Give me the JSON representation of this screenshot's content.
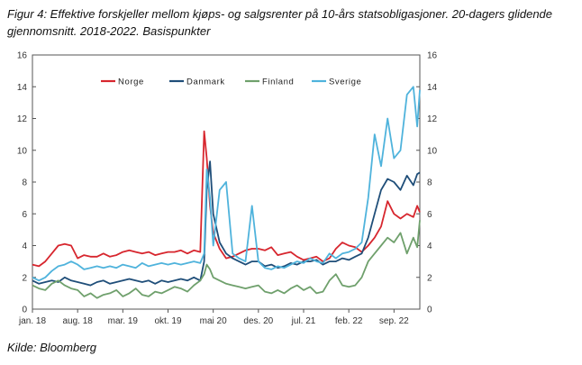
{
  "title": "Figur 4: Effektive forskjeller mellom kjøps- og salgsrenter på 10-års statsobligasjoner. 20-dagers glidende gjennomsnitt. 2018-2022. Basispunkter",
  "source": "Kilde: Bloomberg",
  "colors": {
    "Norge": "#d7262e",
    "Danmark": "#1f4e79",
    "Finland": "#6fa06c",
    "Sverige": "#4fb3dc"
  },
  "chart_data": {
    "type": "line",
    "title": "Figur 4: Effektive forskjeller mellom kjøps- og salgsrenter på 10-års statsobligasjoner. 20-dagers glidende gjennomsnitt. 2018-2022. Basispunkter",
    "xlabel": "",
    "ylabel": "",
    "ylim": [
      0,
      16
    ],
    "xlim": [
      0,
      60
    ],
    "yticks_left": [
      "0",
      "2",
      "4",
      "6",
      "8",
      "10",
      "12",
      "14",
      "16"
    ],
    "yticks_right": [
      "0",
      "2",
      "4",
      "6",
      "8",
      "10",
      "12",
      "14",
      "16"
    ],
    "xticks": [
      {
        "pos": 0,
        "label": "jan. 18"
      },
      {
        "pos": 7,
        "label": "aug. 18"
      },
      {
        "pos": 14,
        "label": "mar. 19"
      },
      {
        "pos": 21,
        "label": "okt. 19"
      },
      {
        "pos": 28,
        "label": "mai 20"
      },
      {
        "pos": 35,
        "label": "des. 20"
      },
      {
        "pos": 42,
        "label": "jul. 21"
      },
      {
        "pos": 49,
        "label": "feb. 22"
      },
      {
        "pos": 56,
        "label": "sep. 22"
      }
    ],
    "legend_position": "top",
    "series": [
      {
        "name": "Norge",
        "x": [
          0,
          1,
          2,
          3,
          4,
          5,
          6,
          7,
          8,
          9,
          10,
          11,
          12,
          13,
          14,
          15,
          16,
          17,
          18,
          19,
          20,
          21,
          22,
          23,
          24,
          25,
          26,
          26.6,
          27,
          27.5,
          28,
          29,
          30,
          31,
          32,
          33,
          34,
          35,
          36,
          37,
          38,
          39,
          40,
          41,
          42,
          43,
          44,
          45,
          46,
          47,
          48,
          49,
          50,
          51,
          52,
          53,
          54,
          55,
          56,
          57,
          58,
          59,
          59.6,
          60
        ],
        "values": [
          2.8,
          2.7,
          3.0,
          3.5,
          4.0,
          4.1,
          4.0,
          3.2,
          3.4,
          3.3,
          3.3,
          3.5,
          3.3,
          3.4,
          3.6,
          3.7,
          3.6,
          3.5,
          3.6,
          3.4,
          3.5,
          3.6,
          3.6,
          3.7,
          3.5,
          3.7,
          3.6,
          11.2,
          9.5,
          6.5,
          4.8,
          3.8,
          3.2,
          3.3,
          3.5,
          3.7,
          3.8,
          3.8,
          3.7,
          3.9,
          3.4,
          3.5,
          3.6,
          3.3,
          3.1,
          3.2,
          3.3,
          3.0,
          3.2,
          3.8,
          4.2,
          4.0,
          3.9,
          3.6,
          4.0,
          4.5,
          5.2,
          6.8,
          6.0,
          5.7,
          6.0,
          5.8,
          6.5,
          6.1
        ]
      },
      {
        "name": "Danmark",
        "x": [
          0,
          1,
          2,
          3,
          4,
          5,
          6,
          7,
          8,
          9,
          10,
          11,
          12,
          13,
          14,
          15,
          16,
          17,
          18,
          19,
          20,
          21,
          22,
          23,
          24,
          25,
          26,
          26.6,
          27,
          27.5,
          28,
          29,
          30,
          31,
          32,
          33,
          34,
          35,
          36,
          37,
          38,
          39,
          40,
          41,
          42,
          43,
          44,
          45,
          46,
          47,
          48,
          49,
          50,
          51,
          52,
          53,
          54,
          55,
          56,
          57,
          58,
          59,
          59.6,
          60
        ],
        "values": [
          1.8,
          1.6,
          1.7,
          1.8,
          1.7,
          2.0,
          1.8,
          1.7,
          1.6,
          1.5,
          1.7,
          1.8,
          1.6,
          1.7,
          1.8,
          1.9,
          1.8,
          1.7,
          1.8,
          1.6,
          1.8,
          1.7,
          1.8,
          1.9,
          1.8,
          2.0,
          1.8,
          3.0,
          7.5,
          9.3,
          6.0,
          4.2,
          3.5,
          3.2,
          3.0,
          2.8,
          3.0,
          3.0,
          2.7,
          2.8,
          2.6,
          2.7,
          2.9,
          2.8,
          3.0,
          3.0,
          3.1,
          2.8,
          3.0,
          3.0,
          3.2,
          3.1,
          3.3,
          3.5,
          4.5,
          6.0,
          7.5,
          8.2,
          8.0,
          7.5,
          8.4,
          7.8,
          8.5,
          8.6
        ]
      },
      {
        "name": "Finland",
        "x": [
          0,
          1,
          2,
          3,
          4,
          5,
          6,
          7,
          8,
          9,
          10,
          11,
          12,
          13,
          14,
          15,
          16,
          17,
          18,
          19,
          20,
          21,
          22,
          23,
          24,
          25,
          26,
          26.6,
          27,
          27.5,
          28,
          29,
          30,
          31,
          32,
          33,
          34,
          35,
          36,
          37,
          38,
          39,
          40,
          41,
          42,
          43,
          44,
          45,
          46,
          47,
          48,
          49,
          50,
          51,
          52,
          53,
          54,
          55,
          56,
          57,
          58,
          59,
          59.6,
          60
        ],
        "values": [
          1.5,
          1.3,
          1.2,
          1.6,
          1.8,
          1.5,
          1.3,
          1.2,
          0.8,
          1.0,
          0.7,
          0.9,
          1.0,
          1.2,
          0.8,
          1.0,
          1.3,
          0.9,
          0.8,
          1.1,
          1.0,
          1.2,
          1.4,
          1.3,
          1.1,
          1.5,
          1.8,
          2.2,
          2.8,
          2.5,
          2.0,
          1.8,
          1.6,
          1.5,
          1.4,
          1.3,
          1.4,
          1.5,
          1.1,
          1.0,
          1.2,
          1.0,
          1.3,
          1.5,
          1.2,
          1.4,
          1.0,
          1.1,
          1.8,
          2.2,
          1.5,
          1.4,
          1.5,
          2.0,
          3.0,
          3.5,
          4.0,
          4.5,
          4.2,
          4.8,
          3.5,
          4.5,
          3.9,
          5.6
        ]
      },
      {
        "name": "Sverige",
        "x": [
          0,
          1,
          2,
          3,
          4,
          5,
          6,
          7,
          8,
          9,
          10,
          11,
          12,
          13,
          14,
          15,
          16,
          17,
          18,
          19,
          20,
          21,
          22,
          23,
          24,
          25,
          26,
          26.6,
          27,
          27.5,
          28,
          29,
          30,
          31,
          32,
          33,
          34,
          35,
          36,
          37,
          38,
          39,
          40,
          41,
          42,
          43,
          44,
          45,
          46,
          47,
          48,
          49,
          50,
          51,
          52,
          53,
          54,
          55,
          56,
          57,
          58,
          59,
          59.6,
          60
        ],
        "values": [
          2.0,
          1.8,
          2.0,
          2.4,
          2.7,
          2.8,
          3.0,
          2.8,
          2.5,
          2.6,
          2.7,
          2.6,
          2.7,
          2.6,
          2.8,
          2.7,
          2.6,
          2.9,
          2.7,
          2.8,
          2.9,
          2.8,
          2.9,
          2.8,
          2.9,
          3.0,
          2.9,
          3.5,
          8.8,
          7.0,
          4.0,
          7.5,
          8.0,
          3.5,
          3.2,
          3.0,
          6.5,
          3.0,
          2.6,
          2.5,
          2.7,
          2.6,
          2.8,
          3.0,
          2.9,
          3.2,
          3.0,
          2.9,
          3.5,
          3.2,
          3.5,
          3.6,
          3.8,
          4.2,
          7.0,
          11.0,
          9.0,
          12.0,
          9.5,
          10.0,
          13.5,
          14.0,
          11.5,
          13.8
        ]
      }
    ]
  }
}
